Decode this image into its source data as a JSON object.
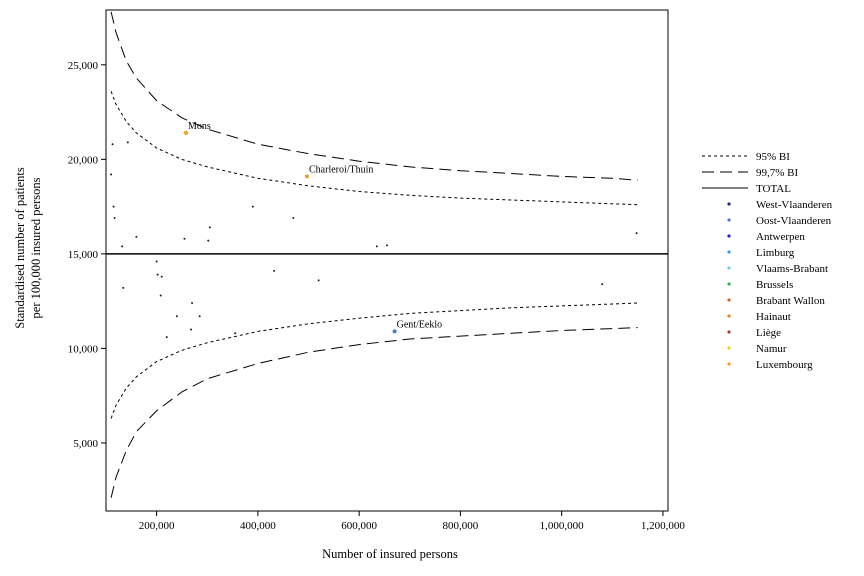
{
  "chart_data": {
    "type": "scatter",
    "title": "",
    "xlabel": "Number of insured persons",
    "ylabel_line1": "Standardised number of patients",
    "ylabel_line2": "per 100,000 insured persons",
    "xlim": [
      100000,
      1210000
    ],
    "ylim": [
      1400,
      27900
    ],
    "xticks": [
      200000,
      400000,
      600000,
      800000,
      1000000,
      1200000
    ],
    "xtick_labels": [
      "200,000",
      "400,000",
      "600,000",
      "800,000",
      "1,000,000",
      "1,200,000"
    ],
    "yticks": [
      5000,
      10000,
      15000,
      20000,
      25000
    ],
    "ytick_labels": [
      "5,000",
      "10,000",
      "15,000",
      "20,000",
      "25,000"
    ],
    "total_line": 15000,
    "grid": false,
    "legend_position": "right",
    "limits": {
      "x": [
        110000,
        120000,
        140000,
        160000,
        200000,
        250000,
        300000,
        400000,
        500000,
        600000,
        700000,
        800000,
        900000,
        1000000,
        1100000,
        1150000
      ],
      "ci95_upper": [
        23600,
        22900,
        22000,
        21400,
        20600,
        20000,
        19600,
        19000,
        18600,
        18300,
        18100,
        17950,
        17850,
        17750,
        17650,
        17600
      ],
      "ci95_lower": [
        6300,
        7000,
        7900,
        8500,
        9300,
        9900,
        10300,
        10900,
        11300,
        11600,
        11850,
        12000,
        12150,
        12250,
        12350,
        12400
      ],
      "ci997_upper": [
        27800,
        26700,
        25200,
        24300,
        23100,
        22200,
        21600,
        20800,
        20300,
        19900,
        19600,
        19400,
        19250,
        19100,
        19000,
        18900
      ],
      "ci997_lower": [
        2100,
        3200,
        4600,
        5600,
        6700,
        7700,
        8400,
        9200,
        9800,
        10200,
        10500,
        10650,
        10800,
        10950,
        11050,
        11100
      ]
    },
    "points": [
      {
        "x": 110000,
        "y": 19200
      },
      {
        "x": 113000,
        "y": 20800
      },
      {
        "x": 115000,
        "y": 17500
      },
      {
        "x": 117000,
        "y": 16900
      },
      {
        "x": 132000,
        "y": 15400
      },
      {
        "x": 134000,
        "y": 13200
      },
      {
        "x": 143000,
        "y": 20900
      },
      {
        "x": 160000,
        "y": 15900
      },
      {
        "x": 200000,
        "y": 14600
      },
      {
        "x": 202000,
        "y": 13900
      },
      {
        "x": 208000,
        "y": 12800
      },
      {
        "x": 210000,
        "y": 13800
      },
      {
        "x": 220000,
        "y": 10600
      },
      {
        "x": 240000,
        "y": 11700
      },
      {
        "x": 255000,
        "y": 15800
      },
      {
        "x": 268000,
        "y": 11000
      },
      {
        "x": 270000,
        "y": 12400
      },
      {
        "x": 285000,
        "y": 11700
      },
      {
        "x": 302000,
        "y": 15700
      },
      {
        "x": 305000,
        "y": 16400
      },
      {
        "x": 355000,
        "y": 10800
      },
      {
        "x": 390000,
        "y": 17500
      },
      {
        "x": 432000,
        "y": 14100
      },
      {
        "x": 470000,
        "y": 16900
      },
      {
        "x": 520000,
        "y": 13600
      },
      {
        "x": 635000,
        "y": 15400
      },
      {
        "x": 655000,
        "y": 15450
      },
      {
        "x": 1080000,
        "y": 13400
      },
      {
        "x": 1148000,
        "y": 16100
      },
      {
        "x": 258000,
        "y": 21400,
        "label": "Mons",
        "color": "#f0a020"
      },
      {
        "x": 497000,
        "y": 19100,
        "label": "Charleroi/Thuin",
        "color": "#e8a030"
      },
      {
        "x": 670000,
        "y": 10900,
        "label": "Gent/Eeklo",
        "color": "#4a78d8"
      }
    ],
    "legend": {
      "lines": [
        {
          "label": "95% BI",
          "style": "dotted"
        },
        {
          "label": "99,7% BI",
          "style": "dashed"
        },
        {
          "label": "TOTAL",
          "style": "solid"
        }
      ],
      "regions": [
        {
          "label": "West-Vlaanderen",
          "color": "#1a2a7a"
        },
        {
          "label": "Oost-Vlaanderen",
          "color": "#4a78d8"
        },
        {
          "label": "Antwerpen",
          "color": "#2020e0"
        },
        {
          "label": "Limburg",
          "color": "#3a9ae0"
        },
        {
          "label": "Vlaams-Brabant",
          "color": "#80c8f0"
        },
        {
          "label": "Brussels",
          "color": "#30b040"
        },
        {
          "label": "Brabant Wallon",
          "color": "#e06030"
        },
        {
          "label": "Hainaut",
          "color": "#f08020"
        },
        {
          "label": "Liège",
          "color": "#b03a3a"
        },
        {
          "label": "Namur",
          "color": "#f0d020"
        },
        {
          "label": "Luxembourg",
          "color": "#f0a020"
        }
      ]
    }
  }
}
